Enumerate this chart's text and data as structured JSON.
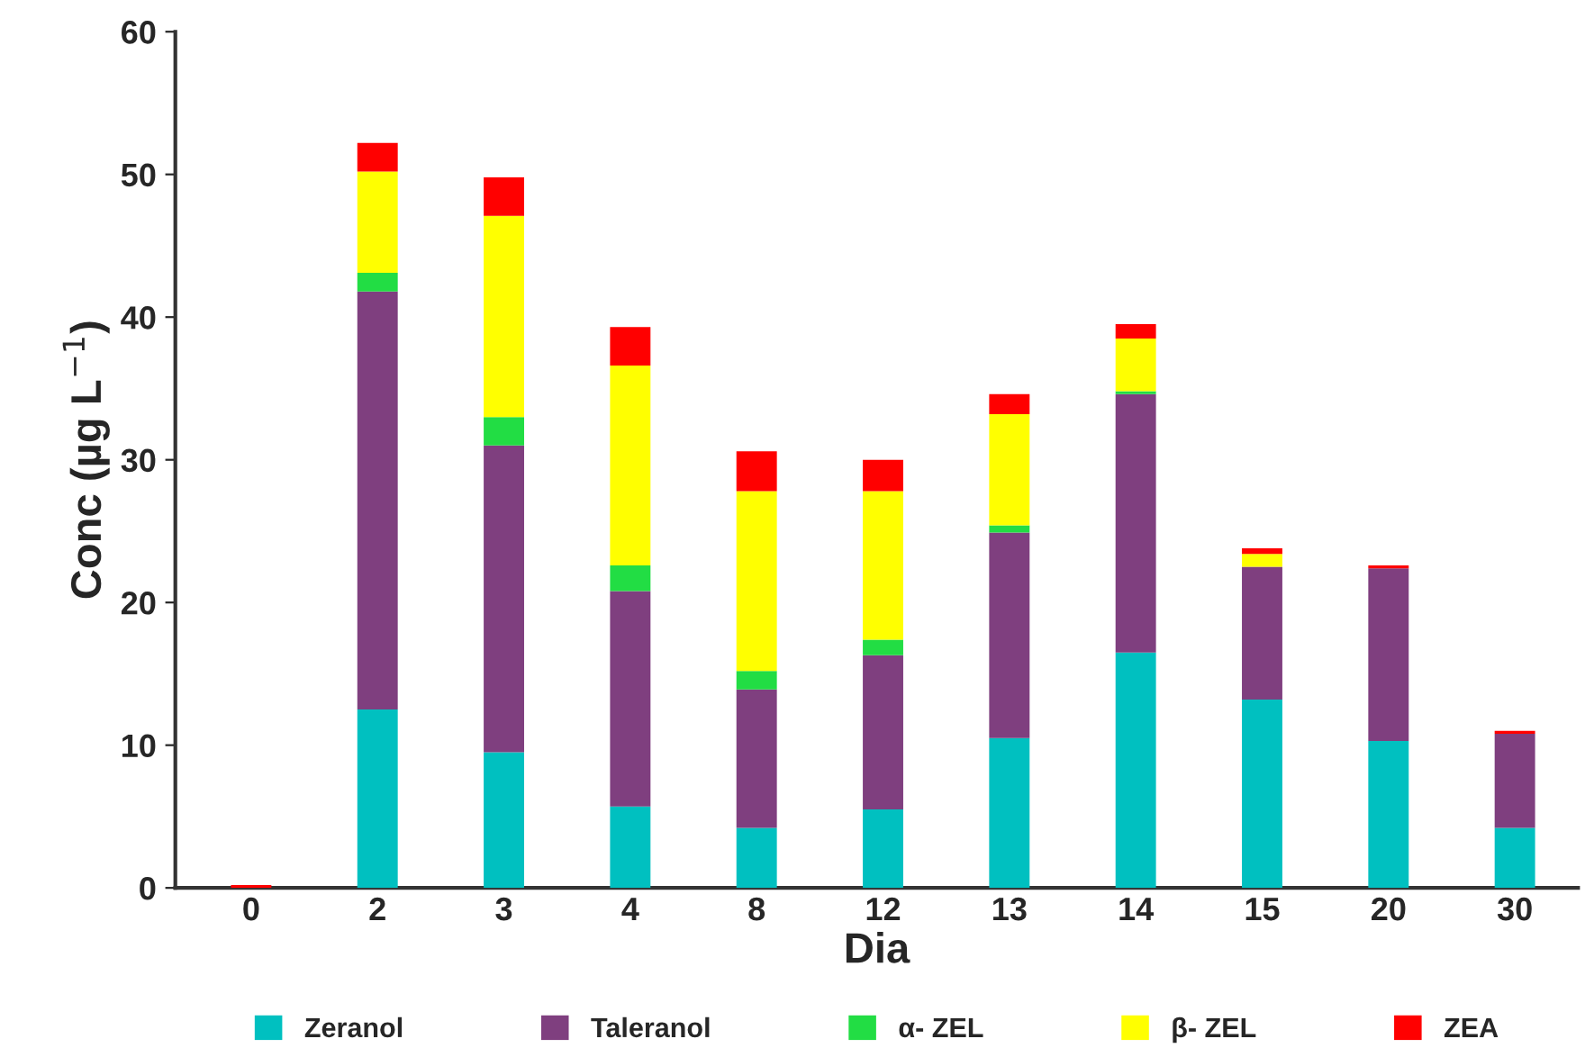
{
  "chart_data": {
    "type": "bar",
    "stacked": true,
    "xlabel": "Dia",
    "ylabel": "Conc (µg L$^{−1}$)",
    "categories": [
      "0",
      "2",
      "3",
      "4",
      "8",
      "12",
      "13",
      "14",
      "15",
      "20",
      "30"
    ],
    "series": [
      {
        "name": "Zeranol",
        "color": "#00c0c0",
        "values": [
          0,
          12.5,
          9.5,
          5.7,
          4.2,
          5.5,
          10.5,
          16.5,
          13.2,
          10.3,
          4.2
        ]
      },
      {
        "name": "Taleranol",
        "color": "#7f3f7f",
        "values": [
          0,
          29.3,
          21.5,
          15.1,
          9.7,
          10.8,
          14.4,
          18.1,
          9.3,
          12.1,
          6.6
        ]
      },
      {
        "name": "α- ZEL",
        "color": "#22dd44",
        "values": [
          0,
          1.3,
          2.0,
          1.8,
          1.3,
          1.1,
          0.5,
          0.2,
          0,
          0,
          0
        ]
      },
      {
        "name": "β- ZEL",
        "color": "#ffff00",
        "values": [
          0,
          7.1,
          14.1,
          14.0,
          12.6,
          10.4,
          7.8,
          3.7,
          0.9,
          0,
          0
        ]
      },
      {
        "name": "ZEA",
        "color": "#ff0000",
        "values": [
          0.2,
          2.0,
          2.7,
          2.7,
          2.8,
          2.2,
          1.4,
          1.0,
          0.4,
          0.2,
          0.2
        ]
      }
    ],
    "ylim": [
      0,
      60
    ],
    "yticks": [
      0,
      10,
      20,
      30,
      40,
      50,
      60
    ],
    "grid": false,
    "legend": "bottom"
  }
}
